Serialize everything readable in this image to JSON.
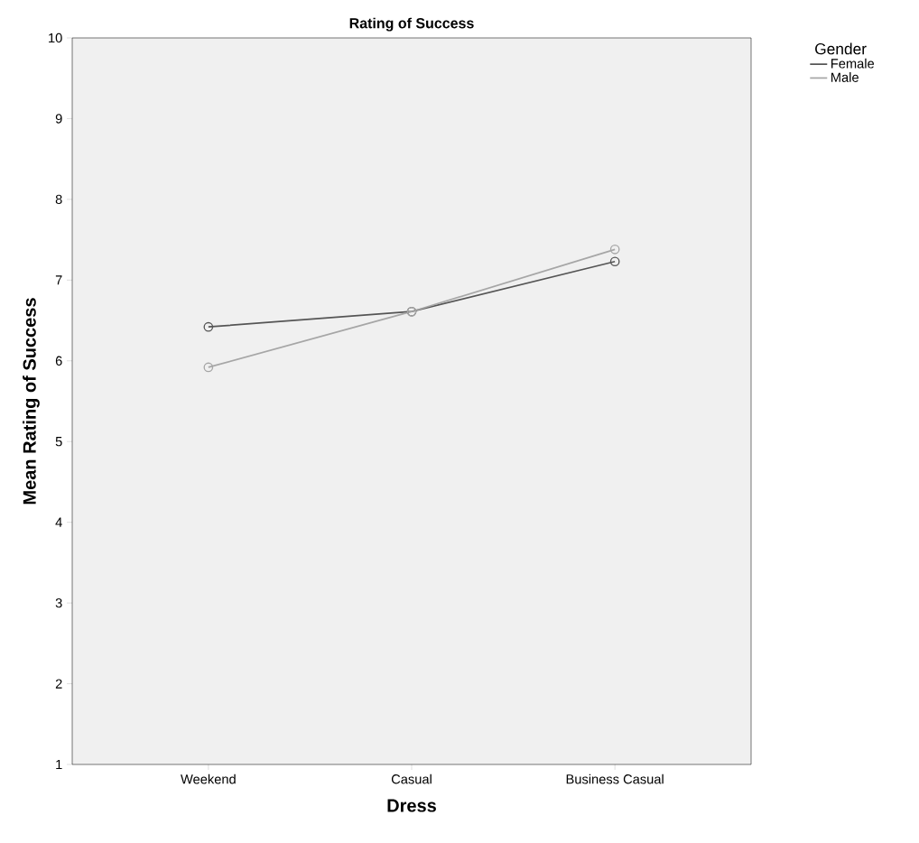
{
  "chart_data": {
    "type": "line",
    "title": "Rating of Success",
    "xlabel": "Dress",
    "ylabel": "Mean Rating of Success",
    "categories": [
      "Weekend",
      "Casual",
      "Business Casual"
    ],
    "series": [
      {
        "name": "Female",
        "color": "#555555",
        "values": [
          6.42,
          6.61,
          7.23
        ]
      },
      {
        "name": "Male",
        "color": "#a6a6a6",
        "values": [
          5.92,
          6.61,
          7.38
        ]
      }
    ],
    "legend_title": "Gender",
    "legend": "top right",
    "marker": "circle",
    "ylim": [
      1,
      10
    ],
    "yticks": [
      1,
      2,
      3,
      4,
      5,
      6,
      7,
      8,
      9,
      10
    ],
    "grid": false
  }
}
